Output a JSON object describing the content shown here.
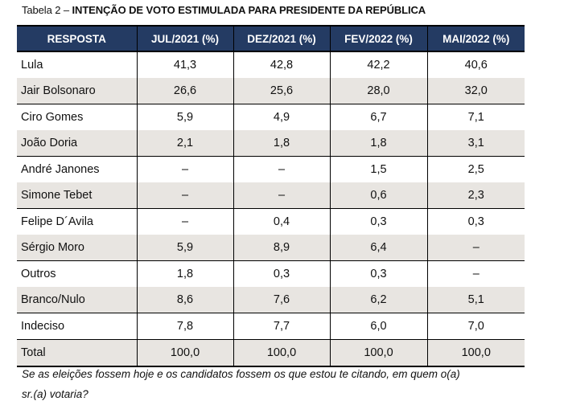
{
  "caption": {
    "prefix": "Tabela 2 – ",
    "title": "INTENÇÃO DE VOTO ESTIMULADA PARA PRESIDENTE DA REPÚBLICA"
  },
  "table": {
    "headers": [
      "RESPOSTA",
      "JUL/2021 (%)",
      "DEZ/2021 (%)",
      "FEV/2022 (%)",
      "MAI/2022 (%)"
    ],
    "rows": [
      {
        "label": "Lula",
        "values": [
          "41,3",
          "42,8",
          "42,2",
          "40,6"
        ]
      },
      {
        "label": "Jair Bolsonaro",
        "values": [
          "26,6",
          "25,6",
          "28,0",
          "32,0"
        ]
      },
      {
        "label": "Ciro Gomes",
        "values": [
          "5,9",
          "4,9",
          "6,7",
          "7,1"
        ]
      },
      {
        "label": "João Doria",
        "values": [
          "2,1",
          "1,8",
          "1,8",
          "3,1"
        ]
      },
      {
        "label": "André Janones",
        "values": [
          "–",
          "–",
          "1,5",
          "2,5"
        ]
      },
      {
        "label": "Simone Tebet",
        "values": [
          "–",
          "–",
          "0,6",
          "2,3"
        ]
      },
      {
        "label": "Felipe D´Avila",
        "values": [
          "–",
          "0,4",
          "0,3",
          "0,3"
        ]
      },
      {
        "label": "Sérgio Moro",
        "values": [
          "5,9",
          "8,9",
          "6,4",
          "–"
        ]
      },
      {
        "label": "Outros",
        "values": [
          "1,8",
          "0,3",
          "0,3",
          "–"
        ]
      },
      {
        "label": "Branco/Nulo",
        "values": [
          "8,6",
          "7,6",
          "6,2",
          "5,1"
        ]
      },
      {
        "label": "Indeciso",
        "values": [
          "7,8",
          "7,7",
          "6,0",
          "7,0"
        ]
      },
      {
        "label": "Total",
        "values": [
          "100,0",
          "100,0",
          "100,0",
          "100,0"
        ]
      }
    ]
  },
  "note": {
    "line1": "Se as eleições fossem hoje e os candidatos fossem os que estou te citando, em quem o(a)",
    "line2": "sr.(a) votaria?"
  },
  "colors": {
    "header_bg": "#243b63",
    "shaded_row_bg": "#e8e5e1"
  }
}
